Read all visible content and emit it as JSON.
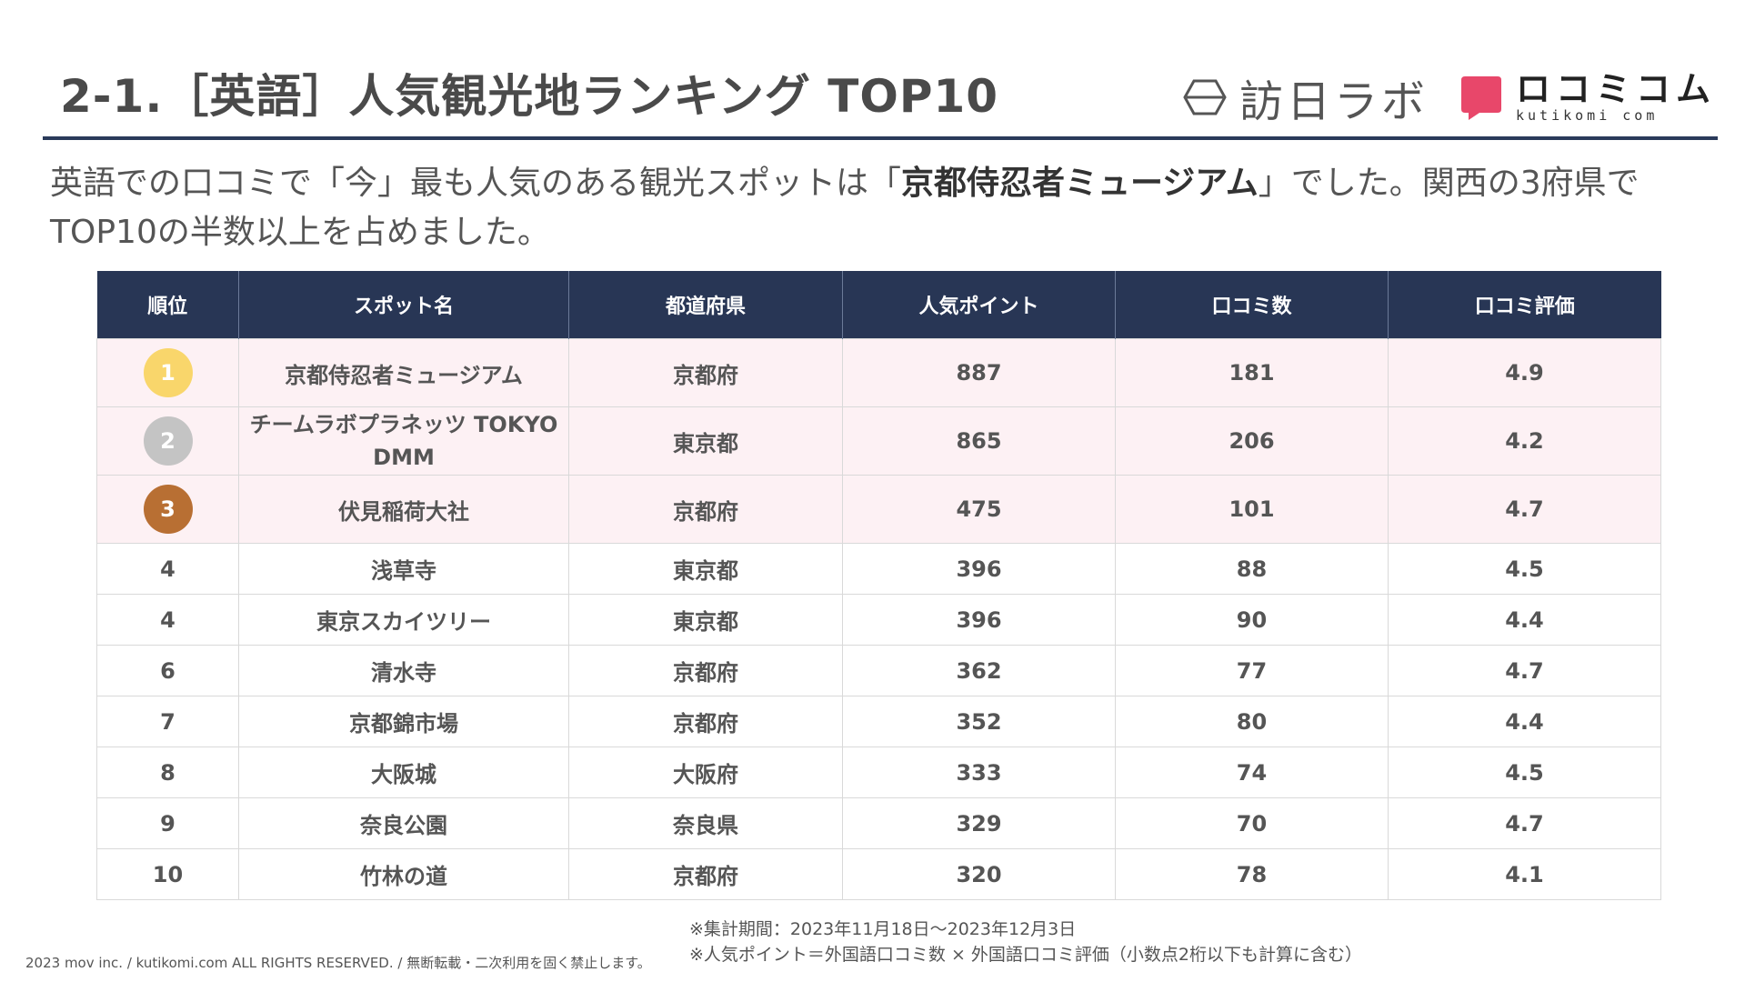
{
  "header": {
    "title": "2-1.［英語］人気観光地ランキング TOP10",
    "logo_houjin": "訪日ラボ",
    "logo_kuchikomi_jp": "ロコミコム",
    "logo_kuchikomi_en": "kutikomi com"
  },
  "lead": {
    "part1": "英語での口コミで「今」最も人気のある観光スポットは「",
    "emphasis": "京都侍忍者ミュージアム",
    "part2": "」でした。関西の3府県でTOP10の半数以上を占めました。"
  },
  "table": {
    "headers": [
      "順位",
      "スポット名",
      "都道府県",
      "人気ポイント",
      "口コミ数",
      "口コミ評価"
    ],
    "rows": [
      {
        "rank": "1",
        "spot": "京都侍忍者ミュージアム",
        "pref": "京都府",
        "points": "887",
        "reviews": "181",
        "rating": "4.9"
      },
      {
        "rank": "2",
        "spot": "チームラボプラネッツ TOKYO DMM",
        "pref": "東京都",
        "points": "865",
        "reviews": "206",
        "rating": "4.2"
      },
      {
        "rank": "3",
        "spot": "伏見稲荷大社",
        "pref": "京都府",
        "points": "475",
        "reviews": "101",
        "rating": "4.7"
      },
      {
        "rank": "4",
        "spot": "浅草寺",
        "pref": "東京都",
        "points": "396",
        "reviews": "88",
        "rating": "4.5"
      },
      {
        "rank": "4",
        "spot": "東京スカイツリー",
        "pref": "東京都",
        "points": "396",
        "reviews": "90",
        "rating": "4.4"
      },
      {
        "rank": "6",
        "spot": "清水寺",
        "pref": "京都府",
        "points": "362",
        "reviews": "77",
        "rating": "4.7"
      },
      {
        "rank": "7",
        "spot": "京都錦市場",
        "pref": "京都府",
        "points": "352",
        "reviews": "80",
        "rating": "4.4"
      },
      {
        "rank": "8",
        "spot": "大阪城",
        "pref": "大阪府",
        "points": "333",
        "reviews": "74",
        "rating": "4.5"
      },
      {
        "rank": "9",
        "spot": "奈良公園",
        "pref": "奈良県",
        "points": "329",
        "reviews": "70",
        "rating": "4.7"
      },
      {
        "rank": "10",
        "spot": "竹林の道",
        "pref": "京都府",
        "points": "320",
        "reviews": "78",
        "rating": "4.1"
      }
    ]
  },
  "colors": {
    "header_bg": "#283655",
    "top3_row_bg": "#fdf1f4",
    "gold": "#f9d66b",
    "silver": "#c4c4c4",
    "bronze": "#b86f33",
    "brand_pink": "#e8476a"
  },
  "notes": {
    "period": "※集計期間：2023年11月18日〜2023年12月3日",
    "formula": "※人気ポイント＝外国語口コミ数 × 外国語口コミ評価（小数点2桁以下も計算に含む）"
  },
  "footer": {
    "copyright": "2023 mov inc. / kutikomi.com ALL RIGHTS RESERVED. / 無断転載・二次利用を固く禁止します。"
  }
}
